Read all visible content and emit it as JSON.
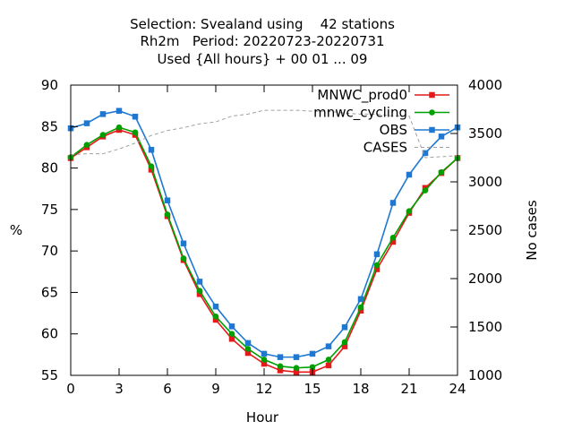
{
  "chart_data": {
    "type": "line",
    "title_lines": [
      "Selection: Svealand using    42 stations",
      "Rh2m   Period: 20220723-20220731",
      "Used {All hours} + 00 01 ... 09"
    ],
    "xlabel": "Hour",
    "ylabel": "%",
    "y2label": "No cases",
    "xlim": [
      0,
      24
    ],
    "ylim": [
      55,
      90
    ],
    "y2lim": [
      1000,
      4000
    ],
    "xticks": [
      0,
      3,
      6,
      9,
      12,
      15,
      18,
      21,
      24
    ],
    "yticks": [
      55,
      60,
      65,
      70,
      75,
      80,
      85,
      90
    ],
    "y2ticks": [
      1000,
      1500,
      2000,
      2500,
      3000,
      3500,
      4000
    ],
    "legend_position": "top-right",
    "grid": false,
    "x": [
      0,
      1,
      2,
      3,
      4,
      5,
      6,
      7,
      8,
      9,
      10,
      11,
      12,
      13,
      14,
      15,
      16,
      17,
      18,
      19,
      20,
      21,
      22,
      23,
      24
    ],
    "series": [
      {
        "name": "MNWC_prod0",
        "color": "#e41a1c",
        "axis": "y1",
        "style": "solid",
        "marker": "filled-square",
        "values": [
          81.2,
          82.5,
          83.8,
          84.6,
          84.0,
          79.8,
          74.2,
          68.9,
          64.8,
          61.7,
          59.4,
          57.7,
          56.4,
          55.6,
          55.4,
          55.4,
          56.2,
          58.5,
          62.8,
          67.8,
          71.1,
          74.6,
          77.6,
          79.4,
          81.2
        ]
      },
      {
        "name": "mnwc_cycling",
        "color": "#00a000",
        "axis": "y1",
        "style": "solid",
        "marker": "filled-circle",
        "values": [
          81.3,
          82.8,
          84.0,
          84.9,
          84.3,
          80.2,
          74.4,
          69.1,
          65.2,
          62.1,
          60.0,
          58.2,
          56.9,
          56.1,
          55.9,
          56.0,
          56.9,
          59.0,
          63.2,
          68.3,
          71.6,
          74.8,
          77.3,
          79.5,
          81.2
        ]
      },
      {
        "name": "OBS",
        "color": "#1e78d2",
        "axis": "y1",
        "style": "solid",
        "marker": "filled-square",
        "values": [
          84.8,
          85.4,
          86.5,
          86.9,
          86.2,
          82.2,
          76.1,
          70.9,
          66.3,
          63.3,
          60.9,
          58.9,
          57.6,
          57.2,
          57.2,
          57.6,
          58.5,
          60.8,
          64.2,
          69.6,
          75.8,
          79.2,
          81.8,
          83.8,
          84.9
        ]
      },
      {
        "name": "CASES",
        "color": "#a0a0a0",
        "axis": "y2",
        "style": "dashed",
        "marker": "none",
        "values": [
          3280,
          3290,
          3290,
          3340,
          3400,
          3480,
          3530,
          3560,
          3600,
          3620,
          3680,
          3700,
          3740,
          3740,
          3740,
          3730,
          3730,
          3710,
          3700,
          3700,
          3680,
          3680,
          3250,
          3260,
          3270
        ]
      }
    ]
  }
}
